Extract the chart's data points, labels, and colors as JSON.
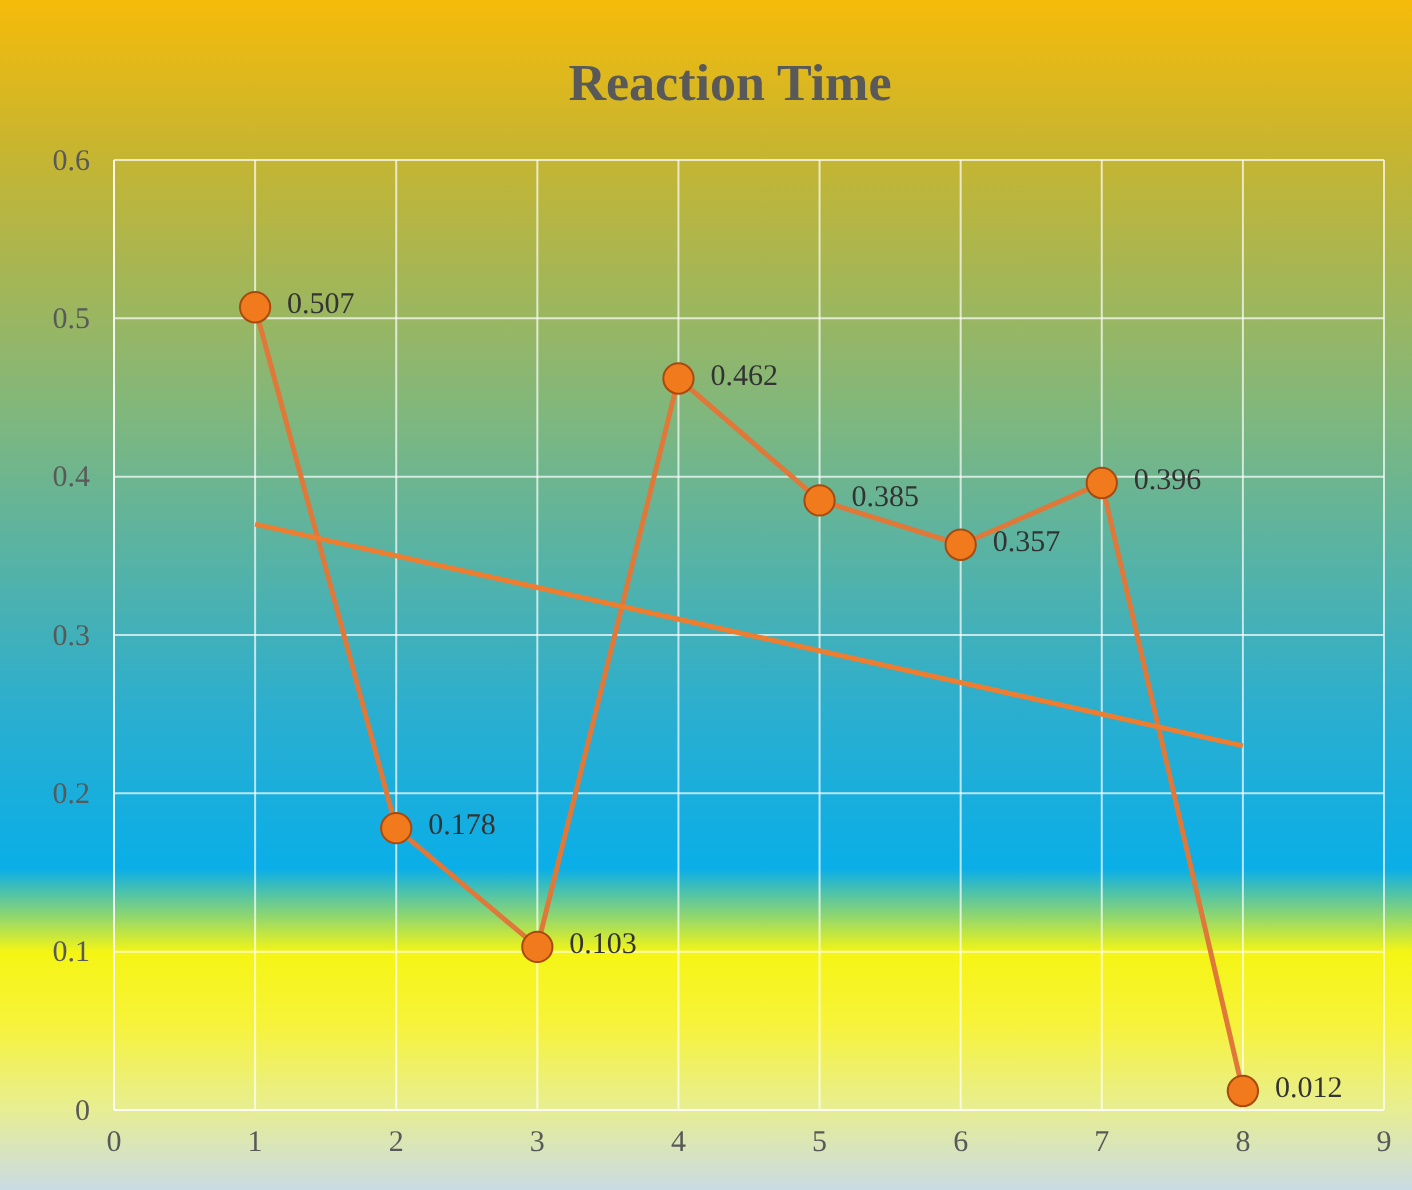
{
  "chart_data": {
    "type": "line",
    "title": "Reaction Time",
    "x": [
      1,
      2,
      3,
      4,
      5,
      6,
      7,
      8
    ],
    "series": [
      {
        "color": "#e0783a",
        "values": [
          0.507,
          0.178,
          0.103,
          0.462,
          0.385,
          0.357,
          0.396,
          0.012
        ],
        "value_labels": [
          "0.507",
          "0.178",
          "0.103",
          "0.462",
          "0.385",
          "0.357",
          "0.396",
          "0.012"
        ],
        "marker": "circle"
      },
      {
        "type": "line",
        "color": "#ed7d31",
        "x": [
          1,
          8
        ],
        "values": [
          0.37,
          0.23
        ],
        "marker": "none"
      }
    ],
    "xlim": [
      0,
      9
    ],
    "xticks": [
      0,
      1,
      2,
      3,
      4,
      5,
      6,
      7,
      8,
      9
    ],
    "ylim": [
      0,
      0.6
    ],
    "yticks": [
      0,
      0.1,
      0.2,
      0.3,
      0.4,
      0.5,
      0.6
    ],
    "grid": true
  }
}
